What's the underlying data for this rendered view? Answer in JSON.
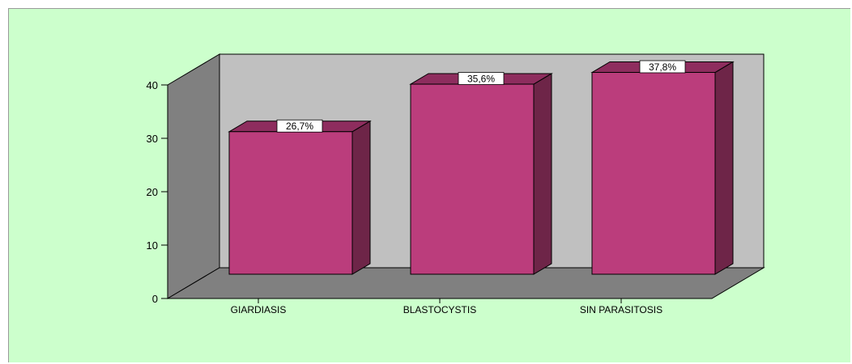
{
  "chart_data": {
    "type": "bar",
    "categories": [
      "GIARDIASIS",
      "BLASTOCYSTIS",
      "SIN PARASITOSIS"
    ],
    "values": [
      26.7,
      35.6,
      37.8
    ],
    "data_labels": [
      "26,7%",
      "35,6%",
      "37,8%"
    ],
    "y_ticks": [
      "0",
      "10",
      "20",
      "30",
      "40"
    ],
    "ylim": [
      0,
      40
    ],
    "title": "",
    "xlabel": "",
    "ylabel": "",
    "grid": false,
    "style": "3d",
    "colors": {
      "background": "#ccffcc",
      "back_wall": "#c0c0c0",
      "side_wall": "#808080",
      "floor": "#808080",
      "bar_front": "#bb3d7c",
      "bar_top": "#8e2d5e",
      "bar_side": "#6e2548"
    }
  }
}
